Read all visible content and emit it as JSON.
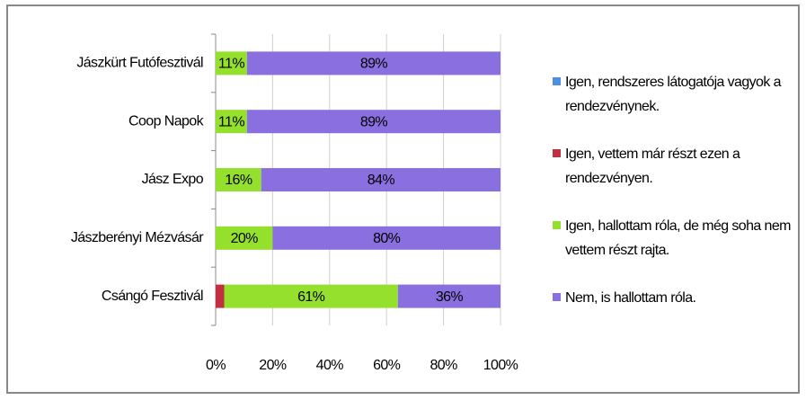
{
  "chart_data": {
    "type": "stacked_barh",
    "categories": [
      "Jászkürt Futófesztivál",
      "Coop Napok",
      "Jász Expo",
      "Jászberényi Mézvásár",
      "Csángó Fesztivál"
    ],
    "series": [
      {
        "name": "Igen, rendszeres látogatója vagyok a rendezvénynek.",
        "color": "#4f8fe0",
        "values": [
          0,
          0,
          0,
          0,
          0
        ]
      },
      {
        "name": "Igen, vettem már részt ezen a rendezvényen.",
        "color": "#c0303f",
        "values": [
          0,
          0,
          0,
          0,
          3
        ]
      },
      {
        "name": "Igen, hallottam róla, de még soha nem vettem részt rajta.",
        "color": "#94e02c",
        "values": [
          11,
          11,
          16,
          20,
          61
        ],
        "value_labels": [
          "11%",
          "11%",
          "16%",
          "20%",
          "61%"
        ]
      },
      {
        "name": "Nem, is hallottam róla.",
        "color": "#8a6fe0",
        "values": [
          89,
          89,
          84,
          80,
          36
        ],
        "value_labels": [
          "89%",
          "89%",
          "84%",
          "80%",
          "36%"
        ]
      }
    ],
    "xlim": [
      0,
      100
    ],
    "xticks": [
      {
        "value": 0,
        "label": "0%"
      },
      {
        "value": 20,
        "label": "20%"
      },
      {
        "value": 40,
        "label": "40%"
      },
      {
        "value": 60,
        "label": "60%"
      },
      {
        "value": 80,
        "label": "80%"
      },
      {
        "value": 100,
        "label": "100%"
      }
    ],
    "grid": true
  }
}
